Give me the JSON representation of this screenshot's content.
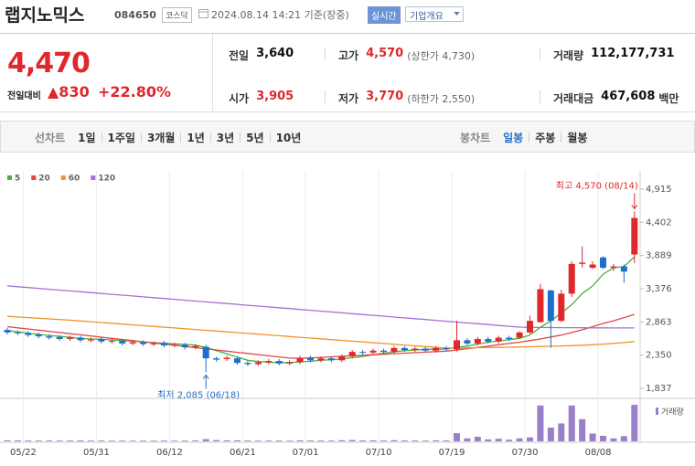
{
  "header": {
    "name": "랩지노믹스",
    "code": "084650",
    "market": "코스닥",
    "timestamp": "2024.08.14 14:21 기준(장중)",
    "realtime": "실시간",
    "company_info": "기업개요"
  },
  "summary": {
    "price": "4,470",
    "change_label": "전일대비",
    "change": "▲830",
    "change_pct": "+22.80%",
    "color": "#e0272b"
  },
  "stats": [
    {
      "label": "전일",
      "value": "3,640",
      "color": "#111111"
    },
    {
      "label": "고가",
      "value": "4,570",
      "note": "(상한가 4,730)",
      "color": "#e0272b"
    },
    {
      "label": "거래량",
      "value": "112,177,731",
      "color": "#111111"
    },
    {
      "label": "시가",
      "value": "3,905",
      "color": "#e0272b"
    },
    {
      "label": "저가",
      "value": "3,770",
      "note": "(하한가 2,550)",
      "color": "#e0272b"
    },
    {
      "label": "거래대금",
      "value": "467,608",
      "unit": "백만",
      "color": "#111111"
    }
  ],
  "tabs": {
    "line_label": "선차트",
    "periods": [
      "1일",
      "1주일",
      "3개월",
      "1년",
      "3년",
      "5년",
      "10년"
    ],
    "candle_label": "봉차트",
    "candle_periods": [
      "일봉",
      "주봉",
      "월봉"
    ],
    "selected_candle_period": 0
  },
  "chart_data": {
    "type": "candlestick",
    "categories": [
      null,
      "05/22",
      null,
      null,
      null,
      null,
      null,
      null,
      "05/31",
      null,
      null,
      null,
      null,
      null,
      null,
      "06/12",
      null,
      null,
      null,
      null,
      null,
      null,
      "06/21",
      null,
      null,
      null,
      null,
      null,
      "07/01",
      null,
      null,
      null,
      null,
      null,
      null,
      "07/10",
      null,
      null,
      null,
      null,
      null,
      null,
      "07/19",
      null,
      null,
      null,
      null,
      null,
      null,
      "07/30",
      null,
      null,
      null,
      null,
      null,
      null,
      "08/08",
      null,
      null,
      null,
      null
    ],
    "open": [
      2740,
      2700,
      2690,
      2670,
      2640,
      2630,
      2600,
      2620,
      2580,
      2600,
      2560,
      2570,
      2530,
      2550,
      2520,
      2540,
      2500,
      2510,
      2470,
      2480,
      2300,
      2290,
      2300,
      2230,
      2210,
      2240,
      2260,
      2220,
      2240,
      2310,
      2270,
      2300,
      2270,
      2330,
      2400,
      2390,
      2420,
      2400,
      2460,
      2430,
      2450,
      2420,
      2460,
      2440,
      2580,
      2530,
      2600,
      2560,
      2620,
      2620,
      2700,
      2860,
      3350,
      2880,
      3300,
      3760,
      3700,
      3860,
      3700,
      3720,
      3905
    ],
    "high": [
      2770,
      2730,
      2720,
      2700,
      2670,
      2660,
      2650,
      2650,
      2620,
      2630,
      2600,
      2600,
      2580,
      2580,
      2560,
      2570,
      2540,
      2540,
      2520,
      2510,
      2330,
      2340,
      2330,
      2260,
      2270,
      2290,
      2290,
      2270,
      2340,
      2340,
      2330,
      2330,
      2360,
      2430,
      2430,
      2450,
      2450,
      2490,
      2490,
      2480,
      2480,
      2490,
      2490,
      2880,
      2610,
      2630,
      2630,
      2650,
      2650,
      2720,
      2960,
      3450,
      3360,
      3360,
      3800,
      4030,
      3800,
      3880,
      3760,
      3750,
      4570
    ],
    "low": [
      2670,
      2660,
      2630,
      2610,
      2590,
      2570,
      2570,
      2550,
      2550,
      2530,
      2530,
      2500,
      2500,
      2490,
      2490,
      2470,
      2470,
      2440,
      2440,
      2085,
      2250,
      2260,
      2200,
      2180,
      2180,
      2210,
      2190,
      2190,
      2210,
      2240,
      2240,
      2240,
      2240,
      2300,
      2360,
      2360,
      2370,
      2370,
      2400,
      2400,
      2390,
      2390,
      2410,
      2410,
      2500,
      2500,
      2530,
      2530,
      2570,
      2600,
      2680,
      2850,
      2460,
      2860,
      3250,
      3700,
      3680,
      3680,
      3650,
      3470,
      3770
    ],
    "close": [
      2700,
      2690,
      2660,
      2640,
      2620,
      2600,
      2620,
      2580,
      2590,
      2560,
      2570,
      2530,
      2550,
      2520,
      2530,
      2500,
      2510,
      2470,
      2490,
      2300,
      2280,
      2310,
      2230,
      2210,
      2240,
      2260,
      2220,
      2240,
      2310,
      2270,
      2300,
      2270,
      2330,
      2400,
      2390,
      2420,
      2400,
      2460,
      2430,
      2450,
      2420,
      2460,
      2440,
      2580,
      2530,
      2600,
      2560,
      2620,
      2600,
      2700,
      2880,
      3370,
      2880,
      3300,
      3760,
      3780,
      3750,
      3700,
      3720,
      3640,
      4470
    ],
    "up_color": "#e0272b",
    "down_color": "#1e6fd0",
    "series": [
      {
        "name": "5",
        "color": "#4caf3c",
        "values": [
          2730,
          2710,
          2690,
          2670,
          2655,
          2640,
          2625,
          2610,
          2600,
          2595,
          2585,
          2575,
          2565,
          2555,
          2545,
          2535,
          2525,
          2515,
          2505,
          2470,
          2420,
          2370,
          2320,
          2270,
          2250,
          2240,
          2235,
          2235,
          2245,
          2255,
          2270,
          2280,
          2290,
          2310,
          2330,
          2355,
          2380,
          2400,
          2420,
          2430,
          2440,
          2440,
          2445,
          2470,
          2490,
          2520,
          2550,
          2570,
          2590,
          2610,
          2660,
          2780,
          2880,
          3000,
          3130,
          3300,
          3420,
          3600,
          3700,
          3720,
          3870
        ]
      },
      {
        "name": "20",
        "color": "#e04848",
        "values": [
          2790,
          2772,
          2754,
          2736,
          2718,
          2700,
          2682,
          2664,
          2646,
          2628,
          2610,
          2592,
          2574,
          2556,
          2538,
          2520,
          2502,
          2484,
          2466,
          2448,
          2430,
          2412,
          2394,
          2376,
          2358,
          2340,
          2322,
          2304,
          2300,
          2308,
          2316,
          2324,
          2332,
          2340,
          2348,
          2356,
          2364,
          2372,
          2380,
          2388,
          2396,
          2404,
          2412,
          2430,
          2450,
          2470,
          2490,
          2510,
          2530,
          2550,
          2575,
          2600,
          2630,
          2660,
          2700,
          2740,
          2790,
          2840,
          2880,
          2930,
          2980
        ]
      },
      {
        "name": "60",
        "color": "#f0932b",
        "values": [
          2950,
          2940,
          2930,
          2920,
          2910,
          2900,
          2890,
          2878,
          2866,
          2854,
          2842,
          2830,
          2818,
          2806,
          2794,
          2782,
          2770,
          2758,
          2746,
          2734,
          2722,
          2710,
          2698,
          2686,
          2674,
          2662,
          2650,
          2638,
          2626,
          2614,
          2602,
          2590,
          2578,
          2566,
          2554,
          2542,
          2530,
          2518,
          2506,
          2494,
          2482,
          2470,
          2458,
          2460,
          2462,
          2465,
          2468,
          2470,
          2473,
          2476,
          2480,
          2484,
          2488,
          2492,
          2497,
          2503,
          2510,
          2520,
          2532,
          2545,
          2560
        ]
      },
      {
        "name": "120",
        "color": "#a66fd6",
        "values": [
          3420,
          3407,
          3394,
          3381,
          3368,
          3355,
          3342,
          3329,
          3316,
          3303,
          3290,
          3277,
          3264,
          3251,
          3238,
          3225,
          3212,
          3199,
          3186,
          3173,
          3160,
          3147,
          3134,
          3121,
          3108,
          3095,
          3082,
          3069,
          3056,
          3043,
          3030,
          3017,
          3004,
          2991,
          2978,
          2965,
          2952,
          2939,
          2926,
          2913,
          2900,
          2887,
          2874,
          2861,
          2848,
          2835,
          2822,
          2809,
          2796,
          2783,
          2780,
          2778,
          2776,
          2775,
          2774,
          2773,
          2772,
          2771,
          2770,
          2770,
          2770
        ]
      }
    ],
    "ylim": [
      1837,
      4915
    ],
    "yticks": [
      {
        "value": 1837,
        "label": "1,837"
      },
      {
        "value": 2350,
        "label": "2,350"
      },
      {
        "value": 2863,
        "label": "2,863"
      },
      {
        "value": 3376,
        "label": "3,376"
      },
      {
        "value": 3889,
        "label": "3,889"
      },
      {
        "value": 4402,
        "label": "4,402"
      },
      {
        "value": 4915,
        "label": "4,915"
      }
    ],
    "volume": {
      "name": "거래량",
      "color": "#9a7fc9",
      "ylim": [
        0,
        115000000
      ],
      "values": [
        3200000,
        2800000,
        2500000,
        2400000,
        2600000,
        2300000,
        2500000,
        2700000,
        2200000,
        2400000,
        2100000,
        2300000,
        2000000,
        2200000,
        2100000,
        2400000,
        2000000,
        2300000,
        2600000,
        6500000,
        3800000,
        2900000,
        3100000,
        2500000,
        2200000,
        2400000,
        2300000,
        2100000,
        3000000,
        2600000,
        2400000,
        2200000,
        3300000,
        4100000,
        2800000,
        2900000,
        2500000,
        3400000,
        2600000,
        2500000,
        2300000,
        3100000,
        2700000,
        25000000,
        9000000,
        14000000,
        6000000,
        8000000,
        5000000,
        9000000,
        12000000,
        110000000,
        42000000,
        55000000,
        110000000,
        68000000,
        24000000,
        17000000,
        9000000,
        16000000,
        112177731
      ]
    },
    "annotations": {
      "high": {
        "text": "최고 4,570 (08/14)",
        "color": "#e0272b"
      },
      "low": {
        "text": "최저 2,085 (06/18)",
        "color": "#2a6fc0"
      }
    }
  }
}
